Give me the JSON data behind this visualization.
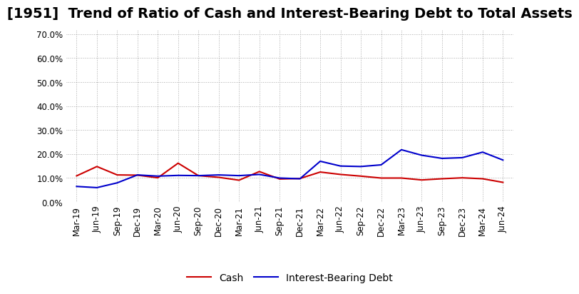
{
  "title": "[1951]  Trend of Ratio of Cash and Interest-Bearing Debt to Total Assets",
  "labels": [
    "Mar-19",
    "Jun-19",
    "Sep-19",
    "Dec-19",
    "Mar-20",
    "Jun-20",
    "Sep-20",
    "Dec-20",
    "Mar-21",
    "Jun-21",
    "Sep-21",
    "Dec-21",
    "Mar-22",
    "Jun-22",
    "Sep-22",
    "Dec-22",
    "Mar-23",
    "Jun-23",
    "Sep-23",
    "Dec-23",
    "Mar-24",
    "Jun-24"
  ],
  "cash": [
    0.109,
    0.148,
    0.113,
    0.112,
    0.101,
    0.162,
    0.11,
    0.103,
    0.091,
    0.127,
    0.096,
    0.098,
    0.125,
    0.115,
    0.108,
    0.1,
    0.1,
    0.092,
    0.097,
    0.101,
    0.097,
    0.082
  ],
  "interest_bearing_debt": [
    0.065,
    0.06,
    0.08,
    0.113,
    0.108,
    0.111,
    0.11,
    0.113,
    0.11,
    0.115,
    0.1,
    0.097,
    0.17,
    0.15,
    0.148,
    0.155,
    0.218,
    0.195,
    0.182,
    0.185,
    0.208,
    0.175
  ],
  "cash_color": "#cc0000",
  "ibd_color": "#0000cc",
  "ylim": [
    0.0,
    0.72
  ],
  "yticks": [
    0.0,
    0.1,
    0.2,
    0.3,
    0.4,
    0.5,
    0.6,
    0.7
  ],
  "ytick_labels": [
    "0.0%",
    "10.0%",
    "20.0%",
    "30.0%",
    "40.0%",
    "50.0%",
    "60.0%",
    "70.0%"
  ],
  "legend_cash": "Cash",
  "legend_ibd": "Interest-Bearing Debt",
  "background_color": "#ffffff",
  "grid_color": "#aaaaaa",
  "title_fontsize": 14,
  "axis_fontsize": 8.5,
  "legend_fontsize": 10,
  "linewidth": 1.5
}
